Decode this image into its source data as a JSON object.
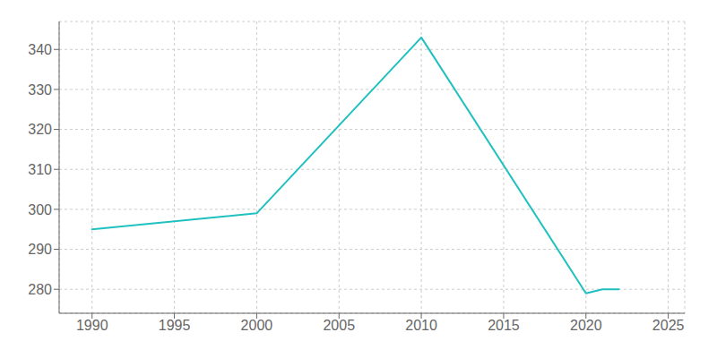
{
  "chart_data": {
    "type": "line",
    "x": [
      1990,
      2000,
      2010,
      2020,
      2021,
      2022
    ],
    "values": [
      295,
      299,
      343,
      279,
      280,
      280
    ],
    "color": "#20c0c0",
    "xlim": [
      1988,
      2026
    ],
    "ylim": [
      274,
      347
    ],
    "xticks": [
      1990,
      1995,
      2000,
      2005,
      2010,
      2015,
      2020,
      2025
    ],
    "yticks": [
      280,
      290,
      300,
      310,
      320,
      330,
      340
    ],
    "grid": true
  }
}
